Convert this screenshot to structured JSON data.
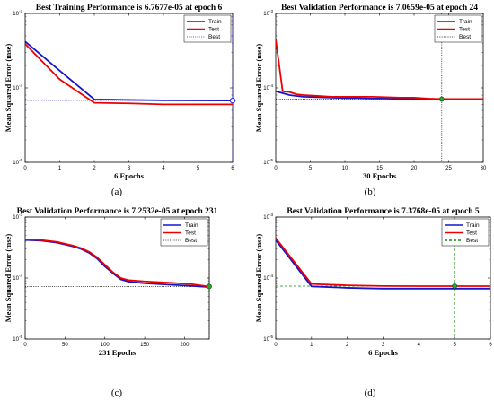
{
  "chart_data": [
    {
      "type": "line",
      "panel_label": "(a)",
      "title": "Best Training Performance is 6.7677e-05 at epoch 6",
      "xlabel": "6 Epochs",
      "ylabel": "Mean Squared Error  (mse)",
      "xlim": [
        0,
        6
      ],
      "xticks": [
        0,
        1,
        2,
        3,
        4,
        5,
        6
      ],
      "ylim": [
        1e-05,
        0.001
      ],
      "yscale": "log",
      "yticks": [
        1e-05,
        0.0001,
        0.001
      ],
      "yticklabels": [
        "10^-5",
        "10^-4",
        "10^-3"
      ],
      "best_epoch": 6,
      "best_value": 6.7677e-05,
      "best_style": "blue-dotted",
      "marker_color": "#3333ff",
      "legend": {
        "position": "top-right",
        "entries": [
          "Train",
          "Test",
          "Best"
        ]
      },
      "series": [
        {
          "name": "Train",
          "color": "#1515d0",
          "x": [
            0,
            1,
            2,
            3,
            4,
            5,
            6
          ],
          "y": [
            0.00042,
            0.00017,
            7e-05,
            6.9e-05,
            6.8e-05,
            6.78e-05,
            6.7677e-05
          ]
        },
        {
          "name": "Test",
          "color": "#ee0000",
          "x": [
            0,
            1,
            2,
            3,
            4,
            5,
            6
          ],
          "y": [
            0.00039,
            0.00013,
            6.3e-05,
            6.2e-05,
            6e-05,
            6e-05,
            6e-05
          ]
        }
      ]
    },
    {
      "type": "line",
      "panel_label": "(b)",
      "title": "Best Validation Performance is 7.0659e-05 at epoch 24",
      "xlabel": "30 Epochs",
      "ylabel": "Mean Squared Error  (mse)",
      "xlim": [
        0,
        30
      ],
      "xticks": [
        0,
        5,
        10,
        15,
        20,
        25,
        30
      ],
      "ylim": [
        1e-05,
        0.001
      ],
      "yscale": "log",
      "yticks": [
        1e-05,
        0.0001,
        0.001
      ],
      "yticklabels": [
        "10^-5",
        "10^-4",
        "10^-3"
      ],
      "best_epoch": 24,
      "best_value": 7.0659e-05,
      "best_style": "black-dotted",
      "marker_color": "#22aa22",
      "legend": {
        "position": "top-right",
        "entries": [
          "Train",
          "Test",
          "Best"
        ]
      },
      "series": [
        {
          "name": "Train",
          "color": "#1515d0",
          "x": [
            0,
            1,
            2,
            3,
            4,
            6,
            8,
            10,
            12,
            14,
            16,
            18,
            20,
            22,
            24,
            26,
            28,
            30
          ],
          "y": [
            9e-05,
            8.5e-05,
            8e-05,
            7.8e-05,
            7.6e-05,
            7.5e-05,
            7.4e-05,
            7.3e-05,
            7.3e-05,
            7.2e-05,
            7.2e-05,
            7.1e-05,
            7.1e-05,
            7e-05,
            7.07e-05,
            7e-05,
            7e-05,
            7e-05
          ]
        },
        {
          "name": "Test",
          "color": "#ee0000",
          "x": [
            0,
            1,
            2,
            3,
            4,
            6,
            8,
            10,
            12,
            14,
            16,
            18,
            20,
            22,
            24,
            26,
            28,
            30
          ],
          "y": [
            0.00045,
            9e-05,
            8.8e-05,
            8.2e-05,
            8e-05,
            7.8e-05,
            7.6e-05,
            7.6e-05,
            7.6e-05,
            7.6e-05,
            7.5e-05,
            7.4e-05,
            7.4e-05,
            7.2e-05,
            7.1e-05,
            7.1e-05,
            7.1e-05,
            7.1e-05
          ]
        }
      ]
    },
    {
      "type": "line",
      "panel_label": "(c)",
      "title": "Best Validation Performance is 7.2532e-05 at epoch 231",
      "xlabel": "231 Epochs",
      "ylabel": "Mean Squared Error  (mse)",
      "xlim": [
        0,
        231
      ],
      "xticks": [
        0,
        50,
        100,
        150,
        200
      ],
      "ylim": [
        1e-05,
        0.001
      ],
      "yscale": "log",
      "yticks": [
        1e-05,
        0.0001,
        0.001
      ],
      "yticklabels": [
        "10^-5",
        "10^-4",
        "10^-3"
      ],
      "best_epoch": 231,
      "best_value": 7.2532e-05,
      "best_style": "black-dotted",
      "marker_color": "#22aa22",
      "legend": {
        "position": "top-right",
        "entries": [
          "Train",
          "Test",
          "Best"
        ]
      },
      "series": [
        {
          "name": "Train",
          "color": "#1515d0",
          "x": [
            0,
            20,
            40,
            60,
            70,
            80,
            90,
            100,
            110,
            120,
            130,
            150,
            180,
            210,
            231
          ],
          "y": [
            0.00042,
            0.00041,
            0.00038,
            0.00033,
            0.0003,
            0.00026,
            0.00021,
            0.000155,
            0.00012,
            9.5e-05,
            8.7e-05,
            8.2e-05,
            7.8e-05,
            7.4e-05,
            7.1e-05
          ]
        },
        {
          "name": "Test",
          "color": "#ee0000",
          "x": [
            0,
            20,
            40,
            60,
            70,
            80,
            90,
            100,
            110,
            120,
            130,
            150,
            180,
            210,
            231
          ],
          "y": [
            0.00043,
            0.00042,
            0.00039,
            0.00034,
            0.00031,
            0.00027,
            0.00022,
            0.000165,
            0.000125,
            0.0001,
            9.2e-05,
            8.8e-05,
            8.4e-05,
            7.9e-05,
            7.25e-05
          ]
        }
      ]
    },
    {
      "type": "line",
      "panel_label": "(d)",
      "title": "Best Validation Performance is 7.3768e-05 at epoch 5",
      "xlabel": "6 Epochs",
      "ylabel": "Mean Squared Error  (mse)",
      "xlim": [
        0,
        6
      ],
      "xticks": [
        0,
        1,
        2,
        3,
        4,
        5,
        6
      ],
      "ylim": [
        1e-05,
        0.001
      ],
      "yscale": "log",
      "yticks": [
        1e-05,
        0.0001,
        0.001
      ],
      "yticklabels": [
        "10^-5",
        "10^-4",
        "10^-3"
      ],
      "best_epoch": 5,
      "best_value": 7.3768e-05,
      "best_style": "green-dashed",
      "marker_color": "#22aa22",
      "legend": {
        "position": "top-right",
        "entries": [
          "Train",
          "Test",
          "Best"
        ]
      },
      "series": [
        {
          "name": "Train",
          "color": "#1515d0",
          "x": [
            0,
            1,
            2,
            3,
            4,
            5,
            6
          ],
          "y": [
            0.00042,
            7.3e-05,
            6.9e-05,
            6.7e-05,
            6.7e-05,
            6.7e-05,
            6.7e-05
          ]
        },
        {
          "name": "Test",
          "color": "#ee0000",
          "x": [
            0,
            1,
            2,
            3,
            4,
            5,
            6
          ],
          "y": [
            0.00045,
            8e-05,
            7.6e-05,
            7.4e-05,
            7.38e-05,
            7.3768e-05,
            7.37e-05
          ]
        }
      ]
    }
  ]
}
